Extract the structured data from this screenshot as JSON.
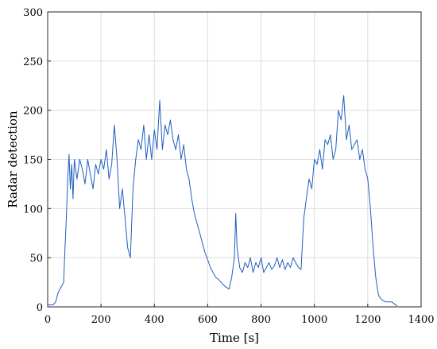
{
  "chart_data": {
    "type": "line",
    "title": "",
    "xlabel": "Time [s]",
    "ylabel": "Radar detection",
    "xlim": [
      0,
      1400
    ],
    "ylim": [
      0,
      300
    ],
    "xticks": [
      0,
      200,
      400,
      600,
      800,
      1000,
      1200,
      1400
    ],
    "yticks": [
      0,
      50,
      100,
      150,
      200,
      250,
      300
    ],
    "grid": true,
    "series": [
      {
        "color": "#1f5fbf",
        "x": [
          0,
          20,
          30,
          40,
          50,
          60,
          65,
          70,
          75,
          80,
          85,
          90,
          95,
          100,
          110,
          120,
          130,
          140,
          150,
          160,
          170,
          180,
          190,
          200,
          210,
          220,
          230,
          240,
          250,
          260,
          270,
          280,
          290,
          300,
          310,
          320,
          330,
          340,
          350,
          360,
          370,
          380,
          390,
          400,
          410,
          420,
          430,
          440,
          450,
          460,
          470,
          480,
          490,
          500,
          510,
          520,
          530,
          540,
          550,
          560,
          570,
          580,
          590,
          600,
          610,
          620,
          630,
          640,
          650,
          660,
          670,
          680,
          690,
          700,
          705,
          710,
          720,
          730,
          740,
          750,
          760,
          770,
          780,
          790,
          800,
          810,
          820,
          830,
          840,
          850,
          860,
          870,
          880,
          890,
          900,
          910,
          920,
          930,
          940,
          950,
          960,
          970,
          980,
          990,
          1000,
          1010,
          1020,
          1030,
          1040,
          1050,
          1060,
          1070,
          1080,
          1090,
          1100,
          1110,
          1120,
          1130,
          1140,
          1150,
          1160,
          1170,
          1180,
          1190,
          1200,
          1210,
          1220,
          1230,
          1240,
          1250,
          1260,
          1270,
          1280,
          1290,
          1300,
          1310
        ],
        "values": [
          2,
          2,
          5,
          15,
          20,
          25,
          60,
          90,
          130,
          155,
          120,
          145,
          110,
          150,
          130,
          150,
          140,
          125,
          150,
          135,
          120,
          145,
          135,
          150,
          140,
          160,
          130,
          145,
          185,
          150,
          100,
          120,
          90,
          60,
          50,
          120,
          150,
          170,
          160,
          185,
          150,
          175,
          150,
          180,
          160,
          210,
          160,
          185,
          175,
          190,
          170,
          160,
          175,
          150,
          165,
          140,
          130,
          110,
          95,
          85,
          75,
          65,
          55,
          48,
          40,
          35,
          30,
          28,
          25,
          22,
          20,
          18,
          30,
          50,
          95,
          60,
          40,
          35,
          45,
          40,
          50,
          35,
          45,
          40,
          50,
          35,
          40,
          45,
          38,
          42,
          50,
          40,
          48,
          38,
          45,
          40,
          50,
          45,
          40,
          38,
          90,
          110,
          130,
          120,
          150,
          145,
          160,
          140,
          170,
          165,
          175,
          150,
          160,
          200,
          190,
          215,
          170,
          185,
          160,
          165,
          170,
          150,
          160,
          140,
          130,
          100,
          60,
          30,
          12,
          8,
          6,
          5,
          5,
          5,
          3,
          1
        ]
      }
    ]
  }
}
